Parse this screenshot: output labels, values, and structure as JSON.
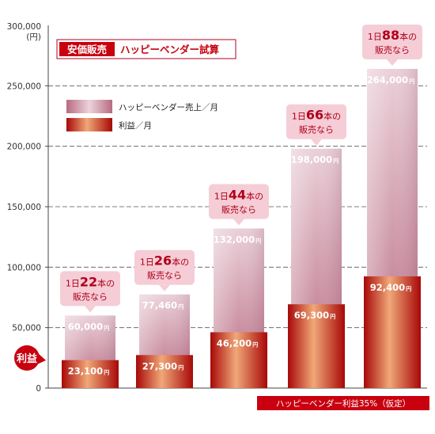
{
  "header": {
    "badge_label": "安価販売",
    "title": "ハッピーベンダー試算"
  },
  "legend": {
    "items": [
      {
        "label": "ハッピーベンダー売上／月",
        "series": "revenue"
      },
      {
        "label": "利益／月",
        "series": "profit"
      }
    ]
  },
  "axis": {
    "y_unit_top": "300,000",
    "y_unit_paren": "(円)"
  },
  "side_badge": "利益",
  "footnote": "ハッピーベンダー利益35%（仮定）",
  "yen_suffix": "円",
  "callout_template": {
    "day_prefix": "1日",
    "count_suffix": "本の",
    "line2": "販売なら"
  },
  "colors": {
    "revenue_top": "#e8bcc8",
    "revenue_bottom": "#b76a80",
    "profit_light": "#f0a070",
    "profit_dark": "#a00000",
    "accent_red": "#c8000f",
    "callout_bg": "#f5cdd6",
    "callout_text": "#b0001a",
    "header_border": "#b00020"
  },
  "chart_data": {
    "type": "bar",
    "categories": [
      "22",
      "26",
      "44",
      "66",
      "88"
    ],
    "series": [
      {
        "name": "ハッピーベンダー売上／月",
        "values": [
          60000,
          77460,
          132000,
          198000,
          264000
        ]
      },
      {
        "name": "利益／月",
        "values": [
          23100,
          27300,
          46200,
          69300,
          92400
        ]
      }
    ],
    "value_labels": {
      "revenue": [
        "60,000",
        "77,460",
        "132,000",
        "198,000",
        "264,000"
      ],
      "profit": [
        "23,100",
        "27,300",
        "46,200",
        "69,300",
        "92,400"
      ]
    },
    "yticks": [
      "0",
      "50,000",
      "100,000",
      "150,000",
      "200,000",
      "250,000"
    ],
    "ylim": [
      0,
      300000
    ],
    "grid": true,
    "legend_position": "top-left"
  }
}
